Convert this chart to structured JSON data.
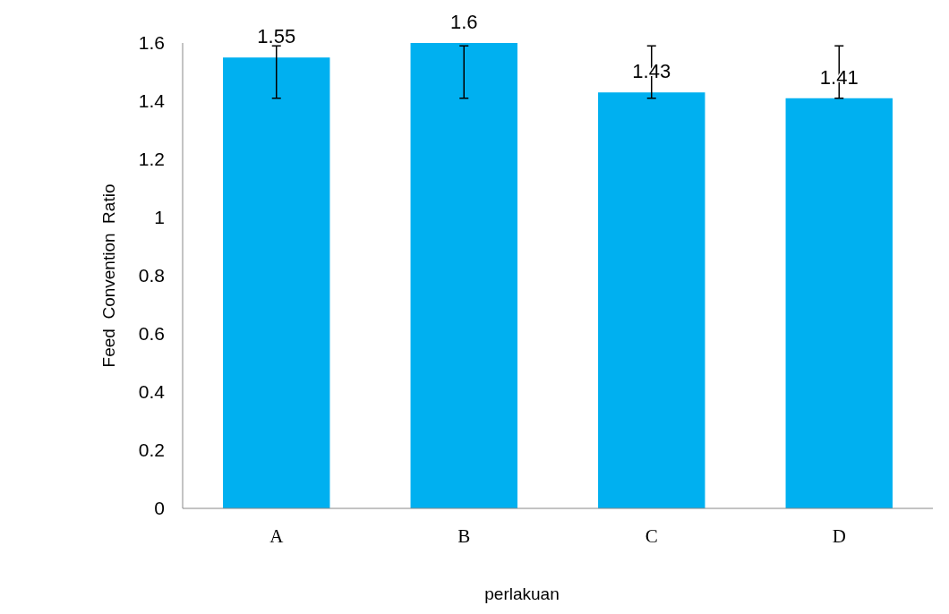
{
  "chart_data": {
    "type": "bar",
    "xlabel": "perlakuan",
    "ylabel": "Feed  Convention  Ratio",
    "categories": [
      "A",
      "B",
      "C",
      "D"
    ],
    "values": [
      1.55,
      1.6,
      1.43,
      1.41
    ],
    "color": "#00b0f0",
    "errors": [
      [
        1.41,
        1.59
      ],
      [
        1.41,
        1.59
      ],
      [
        1.41,
        1.59
      ],
      [
        1.41,
        1.59
      ]
    ],
    "ylim": [
      0,
      1.6
    ],
    "yticks": [
      0,
      0.2,
      0.4,
      0.6,
      0.8,
      1,
      1.2,
      1.4,
      1.6
    ],
    "data_labels": true,
    "grid": false
  }
}
